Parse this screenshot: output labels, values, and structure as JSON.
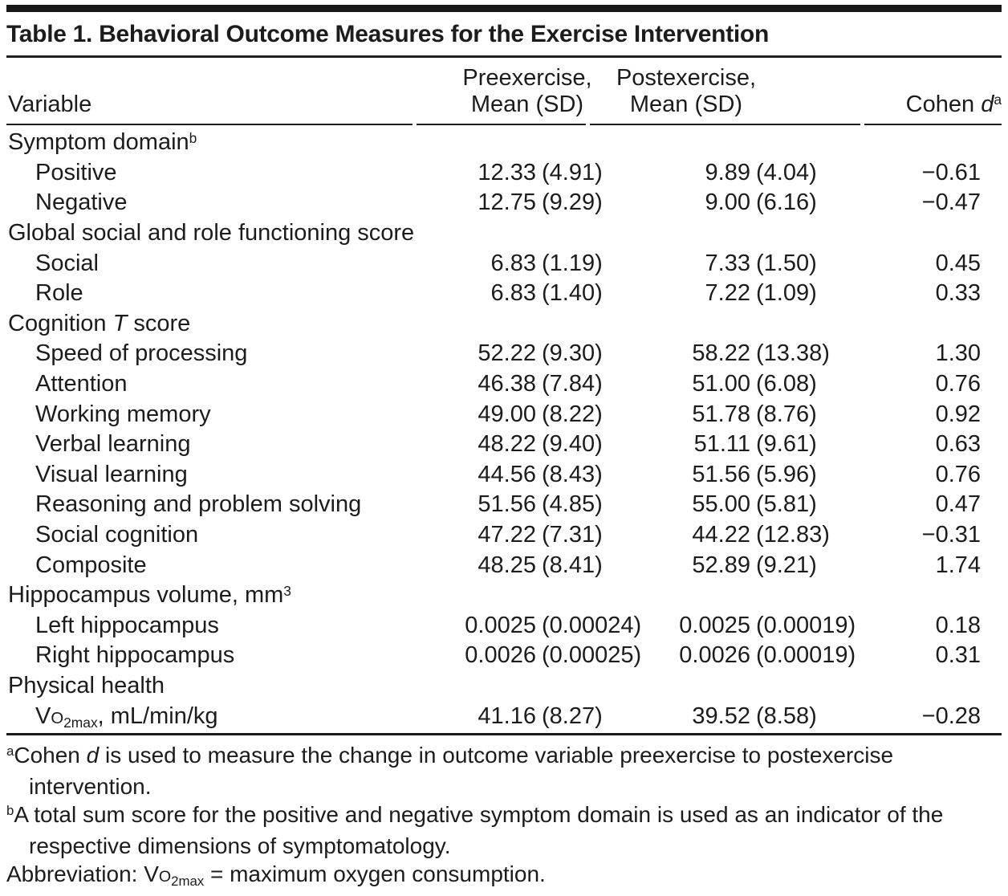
{
  "table_title": "Table 1. Behavioral Outcome Measures for the Exercise Intervention",
  "columns": {
    "variable": "Variable",
    "preexercise": {
      "line1": "Preexercise,",
      "line2": "Mean (SD)"
    },
    "postexercise": {
      "line1": "Postexercise,",
      "line2": "Mean (SD)"
    },
    "cohen_segments": [
      {
        "t": "Cohen "
      },
      {
        "i": "d"
      },
      {
        "sup": "a"
      }
    ]
  },
  "rows": [
    {
      "type": "section",
      "segments": [
        {
          "t": "Symptom domain"
        },
        {
          "sup": "b"
        }
      ]
    },
    {
      "type": "data",
      "segments": [
        {
          "t": "Positive"
        }
      ],
      "pre": "12.33 (4.91)",
      "post": "9.89 (4.04)",
      "cohen": "−0.61"
    },
    {
      "type": "data",
      "segments": [
        {
          "t": "Negative"
        }
      ],
      "pre": "12.75 (9.29)",
      "post": "9.00 (6.16)",
      "cohen": "−0.47"
    },
    {
      "type": "section",
      "segments": [
        {
          "t": "Global social and role functioning score"
        }
      ]
    },
    {
      "type": "data",
      "segments": [
        {
          "t": "Social"
        }
      ],
      "pre": "6.83 (1.19)",
      "post": "7.33 (1.50)",
      "cohen": "0.45"
    },
    {
      "type": "data",
      "segments": [
        {
          "t": "Role"
        }
      ],
      "pre": "6.83 (1.40)",
      "post": "7.22 (1.09)",
      "cohen": "0.33"
    },
    {
      "type": "section",
      "segments": [
        {
          "t": "Cognition "
        },
        {
          "i": "T"
        },
        {
          "t": " score"
        }
      ]
    },
    {
      "type": "data",
      "segments": [
        {
          "t": "Speed of processing"
        }
      ],
      "pre": "52.22 (9.30)",
      "post": "58.22 (13.38)",
      "cohen": "1.30"
    },
    {
      "type": "data",
      "segments": [
        {
          "t": "Attention"
        }
      ],
      "pre": "46.38 (7.84)",
      "post": "51.00 (6.08)",
      "cohen": "0.76"
    },
    {
      "type": "data",
      "segments": [
        {
          "t": "Working memory"
        }
      ],
      "pre": "49.00 (8.22)",
      "post": "51.78 (8.76)",
      "cohen": "0.92"
    },
    {
      "type": "data",
      "segments": [
        {
          "t": "Verbal learning"
        }
      ],
      "pre": "48.22 (9.40)",
      "post": "51.11 (9.61)",
      "cohen": "0.63"
    },
    {
      "type": "data",
      "segments": [
        {
          "t": "Visual learning"
        }
      ],
      "pre": "44.56 (8.43)",
      "post": "51.56 (5.96)",
      "cohen": "0.76"
    },
    {
      "type": "data",
      "segments": [
        {
          "t": "Reasoning and problem solving"
        }
      ],
      "pre": "51.56 (4.85)",
      "post": "55.00 (5.81)",
      "cohen": "0.47"
    },
    {
      "type": "data",
      "segments": [
        {
          "t": "Social cognition"
        }
      ],
      "pre": "47.22 (7.31)",
      "post": "44.22 (12.83)",
      "cohen": "−0.31"
    },
    {
      "type": "data",
      "segments": [
        {
          "t": "Composite"
        }
      ],
      "pre": "48.25 (8.41)",
      "post": "52.89 (9.21)",
      "cohen": "1.74"
    },
    {
      "type": "section",
      "segments": [
        {
          "t": "Hippocampus volume, mm"
        },
        {
          "sup": "3"
        }
      ]
    },
    {
      "type": "data",
      "segments": [
        {
          "t": "Left hippocampus"
        }
      ],
      "pre": "0.0025 (0.00024)",
      "post": "0.0025 (0.00019)",
      "cohen": "0.18"
    },
    {
      "type": "data",
      "segments": [
        {
          "t": "Right hippocampus"
        }
      ],
      "pre": "0.0026 (0.00025)",
      "post": "0.0026 (0.00019)",
      "cohen": "0.31"
    },
    {
      "type": "section",
      "segments": [
        {
          "t": "Physical health"
        }
      ]
    },
    {
      "type": "data",
      "segments": [
        {
          "t": "V"
        },
        {
          "sc": "O"
        },
        {
          "sub": "2max"
        },
        {
          "t": ", mL/min/kg"
        }
      ],
      "pre": "41.16 (8.27)",
      "post": "39.52 (8.58)",
      "cohen": "−0.28"
    }
  ],
  "footnotes": [
    {
      "sup": "a",
      "indent": false,
      "segments": [
        {
          "t": "Cohen "
        },
        {
          "i": "d"
        },
        {
          "t": " is used to measure the change in outcome variable preexercise to postexercise"
        }
      ]
    },
    {
      "sup": "",
      "indent": true,
      "segments": [
        {
          "t": "intervention."
        }
      ]
    },
    {
      "sup": "b",
      "indent": false,
      "segments": [
        {
          "t": "A total sum score for the positive and negative symptom domain is used as an indicator of the"
        }
      ]
    },
    {
      "sup": "",
      "indent": true,
      "segments": [
        {
          "t": "respective dimensions of symptomatology."
        }
      ]
    },
    {
      "sup": "",
      "indent": false,
      "segments": [
        {
          "t": "Abbreviation: V"
        },
        {
          "sc": "O"
        },
        {
          "sub": "2max"
        },
        {
          "t": " = maximum oxygen consumption."
        }
      ]
    }
  ],
  "colors": {
    "text": "#1c1c1c",
    "rule": "#191919",
    "background": "#ffffff"
  }
}
